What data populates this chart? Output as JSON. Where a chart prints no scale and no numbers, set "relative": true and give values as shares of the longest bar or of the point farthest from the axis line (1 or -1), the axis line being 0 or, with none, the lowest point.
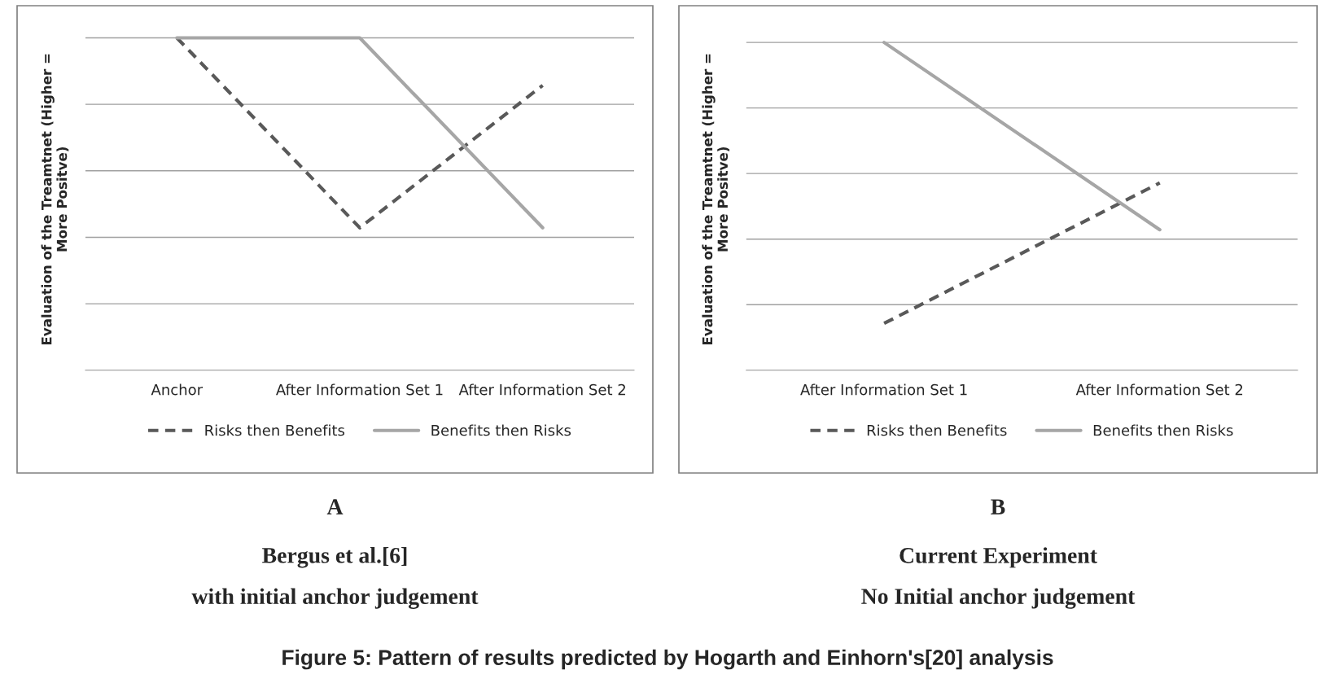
{
  "chart_data": [
    {
      "type": "line",
      "title": "A",
      "subtitle": "Bergus et al.[6]\nwith initial anchor judgement",
      "ylabel": "Evaluation of the Treamtnet (Higher =\nMore Positve)",
      "relative": true,
      "grid": "y",
      "legend": "bottom",
      "categories": [
        "Anchor",
        "After Information Set 1",
        "After Information Set 2"
      ],
      "series": [
        {
          "name": "Risks then Benefits",
          "color": "#595959",
          "line_style": "dashed",
          "values": [
            1,
            0.4286,
            0.8571
          ]
        },
        {
          "name": "Benefits then Risks",
          "color": "#a6a6a6",
          "line_style": "solid",
          "values": [
            1,
            1,
            0.4286
          ]
        }
      ],
      "annotations": [
        "Figure 5: Pattern of results predicted by Hogarth and Einhorn's[20] analysis"
      ]
    },
    {
      "type": "line",
      "title": "B",
      "subtitle": "Current Experiment\nNo Initial anchor judgement",
      "ylabel": "Evaluation of the Treamtnet (Higher =\nMore Positve)",
      "relative": true,
      "grid": "y",
      "legend": "bottom",
      "categories": [
        "After Information Set 1",
        "After Information Set 2"
      ],
      "series": [
        {
          "name": "Risks then Benefits",
          "color": "#595959",
          "line_style": "dashed",
          "values": [
            0.1429,
            0.5714
          ]
        },
        {
          "name": "Benefits then Risks",
          "color": "#a6a6a6",
          "line_style": "solid",
          "values": [
            1,
            0.4286
          ]
        }
      ]
    }
  ]
}
